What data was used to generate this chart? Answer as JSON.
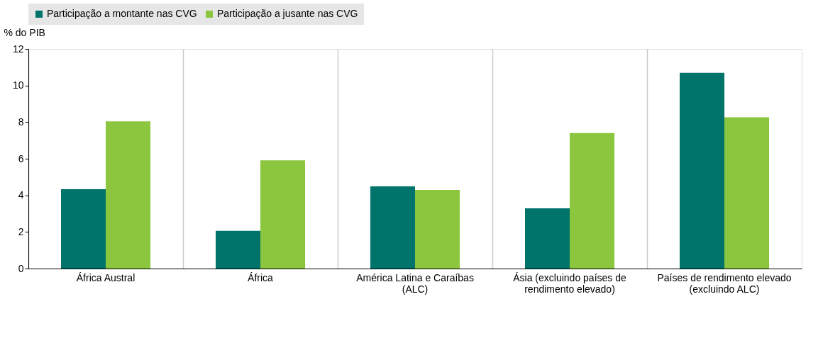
{
  "chart_data": {
    "type": "bar",
    "ylabel": "% do PIB",
    "categories": [
      "África Austral",
      "África",
      "América Latina e Caraíbas\n(ALC)",
      "Ásia (excluindo países de\nrendimento elevado)",
      "Países de rendimento elevado\n(excluindo ALC)"
    ],
    "series": [
      {
        "name": "Participação a montante nas CVG",
        "color": "#00736a",
        "values": [
          4.34,
          2.06,
          4.49,
          3.29,
          10.69
        ]
      },
      {
        "name": "Participação a jusante nas CVG",
        "color": "#8cc63f",
        "values": [
          8.04,
          5.91,
          4.3,
          7.4,
          8.26
        ]
      }
    ],
    "ylim": [
      0,
      12
    ],
    "yticks": [
      0,
      2,
      4,
      6,
      8,
      10,
      12
    ],
    "grid": "x",
    "legend": "top"
  }
}
